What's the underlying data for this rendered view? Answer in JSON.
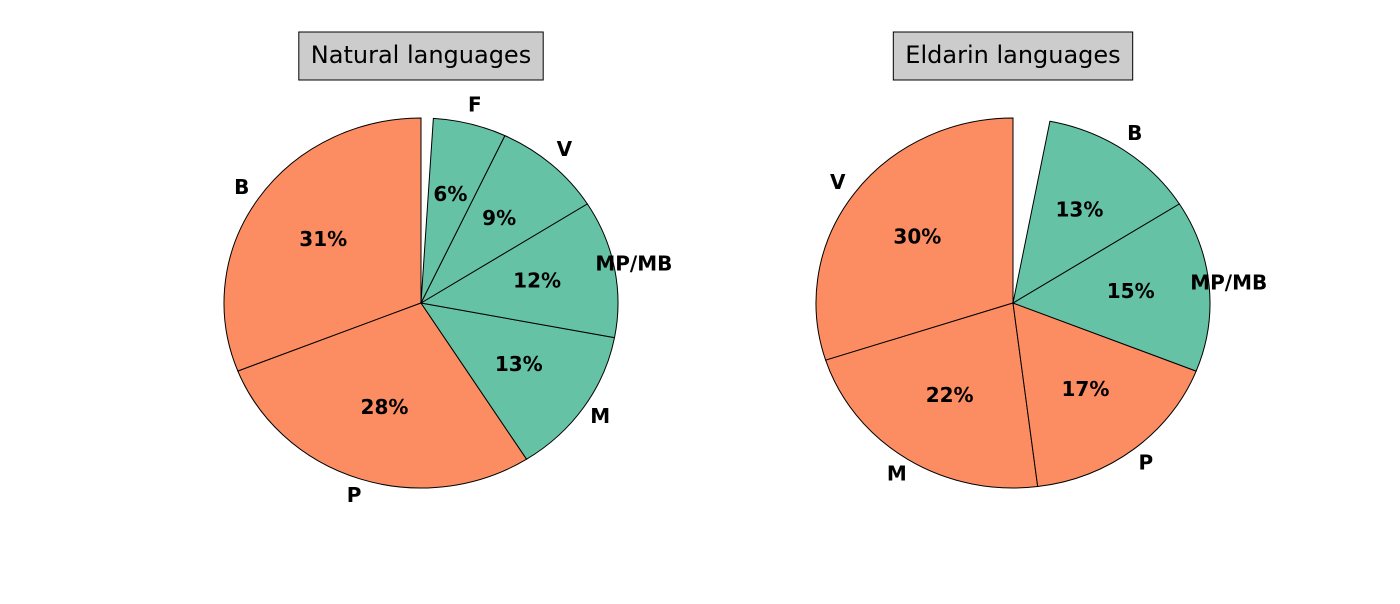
{
  "chart_data": [
    {
      "type": "pie",
      "title": "Natural languages",
      "categories": [
        "B",
        "P",
        "M",
        "MP/MB",
        "V",
        "F"
      ],
      "values": [
        31,
        28,
        13,
        12,
        9,
        6
      ],
      "value_labels": [
        "31%",
        "28%",
        "13%",
        "12%",
        "9%",
        "6%"
      ],
      "colors": [
        "#fc8d62",
        "#fc8d62",
        "#66c2a5",
        "#66c2a5",
        "#66c2a5",
        "#66c2a5"
      ]
    },
    {
      "type": "pie",
      "title": "Eldarin languages",
      "categories": [
        "V",
        "M",
        "P",
        "MP/MB",
        "B"
      ],
      "values": [
        30,
        22,
        17,
        15,
        13
      ],
      "value_labels": [
        "30%",
        "22%",
        "17%",
        "15%",
        "13%"
      ],
      "colors": [
        "#fc8d62",
        "#fc8d62",
        "#fc8d62",
        "#66c2a5",
        "#66c2a5"
      ]
    }
  ]
}
